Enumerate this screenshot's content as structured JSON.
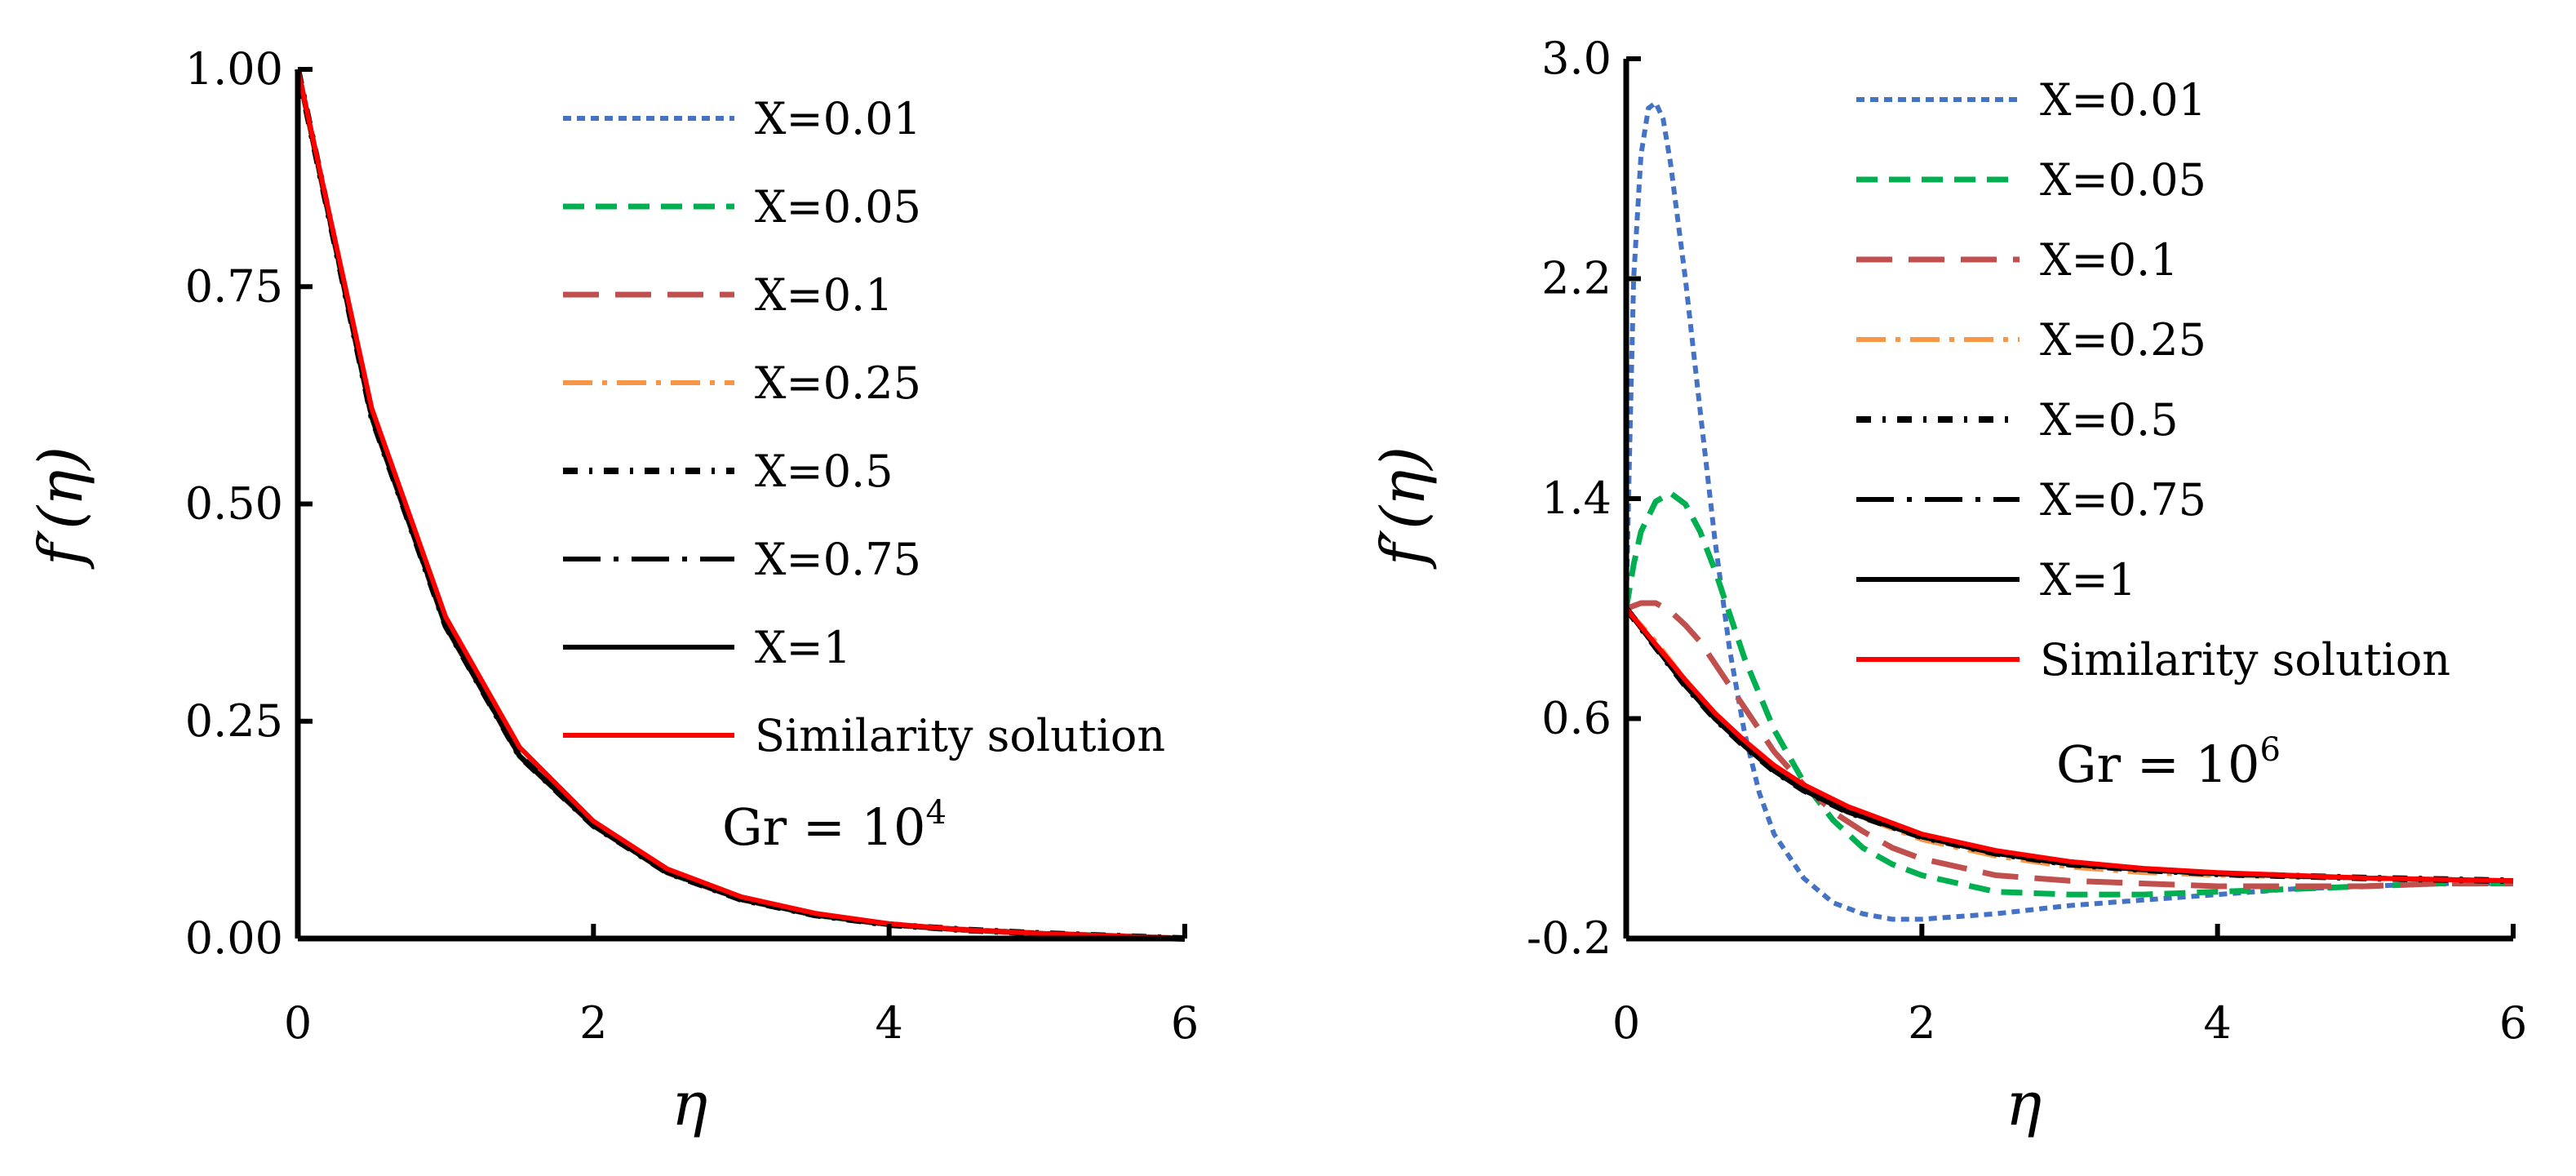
{
  "chart_data": [
    {
      "type": "line",
      "title": "",
      "xlabel": "η",
      "ylabel": "f′(η)",
      "xlim": [
        0,
        6
      ],
      "ylim": [
        0,
        1
      ],
      "xticks": [
        0,
        2,
        4,
        6
      ],
      "xtick_labels": [
        "0",
        "2",
        "4",
        "6"
      ],
      "yticks": [
        0,
        0.25,
        0.5,
        0.75,
        1.0
      ],
      "ytick_labels": [
        "0.00",
        "0.25",
        "0.50",
        "0.75",
        "1.00"
      ],
      "grid": false,
      "legend_position": "top-right",
      "annotation": {
        "base": "Gr = 10",
        "exp": "4"
      },
      "series": [
        {
          "name": "X=0.01",
          "color": "#4472c4",
          "style": "short-dash",
          "x": [
            0,
            0.5,
            1,
            1.5,
            2,
            2.5,
            3,
            3.5,
            4,
            4.5,
            5,
            5.5,
            6
          ],
          "y": [
            1.0,
            0.6,
            0.36,
            0.21,
            0.13,
            0.076,
            0.045,
            0.027,
            0.016,
            0.01,
            0.006,
            0.003,
            0.0
          ]
        },
        {
          "name": "X=0.05",
          "color": "#00b050",
          "style": "dash",
          "x": [
            0,
            0.5,
            1,
            1.5,
            2,
            2.5,
            3,
            3.5,
            4,
            4.5,
            5,
            5.5,
            6
          ],
          "y": [
            1.0,
            0.6,
            0.36,
            0.21,
            0.13,
            0.076,
            0.045,
            0.027,
            0.016,
            0.01,
            0.006,
            0.003,
            0.0
          ]
        },
        {
          "name": "X=0.1",
          "color": "#c0504d",
          "style": "long-dash",
          "x": [
            0,
            0.5,
            1,
            1.5,
            2,
            2.5,
            3,
            3.5,
            4,
            4.5,
            5,
            5.5,
            6
          ],
          "y": [
            1.0,
            0.6,
            0.36,
            0.21,
            0.13,
            0.076,
            0.045,
            0.027,
            0.016,
            0.01,
            0.006,
            0.003,
            0.0
          ]
        },
        {
          "name": "X=0.25",
          "color": "#f79646",
          "style": "dash-dot",
          "x": [
            0,
            0.5,
            1,
            1.5,
            2,
            2.5,
            3,
            3.5,
            4,
            4.5,
            5,
            5.5,
            6
          ],
          "y": [
            1.0,
            0.6,
            0.36,
            0.21,
            0.13,
            0.076,
            0.045,
            0.027,
            0.016,
            0.01,
            0.006,
            0.003,
            0.0
          ]
        },
        {
          "name": "X=0.5",
          "color": "#000000",
          "style": "round-dash-dot",
          "x": [
            0,
            0.5,
            1,
            1.5,
            2,
            2.5,
            3,
            3.5,
            4,
            4.5,
            5,
            5.5,
            6
          ],
          "y": [
            1.0,
            0.6,
            0.36,
            0.21,
            0.13,
            0.076,
            0.045,
            0.027,
            0.016,
            0.01,
            0.006,
            0.003,
            0.0
          ]
        },
        {
          "name": "X=0.75",
          "color": "#000000",
          "style": "long-dash-dot",
          "x": [
            0,
            0.5,
            1,
            1.5,
            2,
            2.5,
            3,
            3.5,
            4,
            4.5,
            5,
            5.5,
            6
          ],
          "y": [
            1.0,
            0.6,
            0.36,
            0.21,
            0.13,
            0.076,
            0.045,
            0.027,
            0.016,
            0.01,
            0.006,
            0.003,
            0.0
          ]
        },
        {
          "name": "X=1",
          "color": "#000000",
          "style": "solid",
          "x": [
            0,
            0.5,
            1,
            1.5,
            2,
            2.5,
            3,
            3.5,
            4,
            4.5,
            5,
            5.5,
            6
          ],
          "y": [
            1.0,
            0.6,
            0.36,
            0.21,
            0.13,
            0.076,
            0.045,
            0.027,
            0.016,
            0.01,
            0.006,
            0.003,
            0.0
          ]
        },
        {
          "name": "Similarity solution",
          "color": "#ff0000",
          "style": "solid",
          "x": [
            0,
            0.5,
            1,
            1.5,
            2,
            2.5,
            3,
            3.5,
            4,
            4.5,
            5,
            5.5,
            6
          ],
          "y": [
            1.0,
            0.61,
            0.37,
            0.22,
            0.135,
            0.08,
            0.048,
            0.029,
            0.017,
            0.01,
            0.006,
            0.003,
            0.0
          ]
        }
      ]
    },
    {
      "type": "line",
      "title": "",
      "xlabel": "η",
      "ylabel": "f′(η)",
      "xlim": [
        0,
        6
      ],
      "ylim": [
        -0.2,
        3.0
      ],
      "xticks": [
        0,
        2,
        4,
        6
      ],
      "xtick_labels": [
        "0",
        "2",
        "4",
        "6"
      ],
      "yticks": [
        -0.2,
        0.6,
        1.4,
        2.2,
        3.0
      ],
      "ytick_labels": [
        "-0.2",
        "0.6",
        "1.4",
        "2.2",
        "3.0"
      ],
      "grid": false,
      "legend_position": "top-right",
      "annotation": {
        "base": "Gr = 10",
        "exp": "6"
      },
      "series": [
        {
          "name": "X=0.01",
          "color": "#4472c4",
          "style": "short-dash",
          "x": [
            0,
            0.02,
            0.05,
            0.1,
            0.15,
            0.2,
            0.25,
            0.3,
            0.4,
            0.5,
            0.6,
            0.7,
            0.8,
            0.9,
            1.0,
            1.2,
            1.4,
            1.6,
            1.8,
            2.0,
            2.5,
            3.0,
            3.5,
            4.0,
            4.5,
            5.0,
            5.5,
            6.0
          ],
          "y": [
            1.0,
            1.5,
            2.2,
            2.65,
            2.82,
            2.84,
            2.78,
            2.62,
            2.2,
            1.72,
            1.25,
            0.85,
            0.55,
            0.33,
            0.18,
            0.02,
            -0.07,
            -0.11,
            -0.13,
            -0.13,
            -0.11,
            -0.08,
            -0.06,
            -0.04,
            -0.02,
            -0.01,
            0.0,
            0.0
          ]
        },
        {
          "name": "X=0.05",
          "color": "#00b050",
          "style": "dash",
          "x": [
            0,
            0.05,
            0.1,
            0.2,
            0.3,
            0.4,
            0.5,
            0.6,
            0.7,
            0.8,
            1.0,
            1.2,
            1.4,
            1.6,
            1.8,
            2.0,
            2.5,
            3.0,
            3.5,
            4.0,
            4.5,
            5.0,
            5.5,
            6.0
          ],
          "y": [
            1.0,
            1.16,
            1.28,
            1.39,
            1.42,
            1.38,
            1.28,
            1.14,
            0.98,
            0.82,
            0.56,
            0.37,
            0.23,
            0.13,
            0.07,
            0.03,
            -0.03,
            -0.04,
            -0.04,
            -0.03,
            -0.02,
            -0.01,
            0.0,
            0.0
          ]
        },
        {
          "name": "X=0.1",
          "color": "#c0504d",
          "style": "long-dash",
          "x": [
            0,
            0.1,
            0.2,
            0.3,
            0.4,
            0.5,
            0.6,
            0.8,
            1.0,
            1.2,
            1.4,
            1.6,
            1.8,
            2.0,
            2.5,
            3.0,
            3.5,
            4.0,
            4.5,
            5.0,
            5.5,
            6.0
          ],
          "y": [
            1.0,
            1.02,
            1.02,
            0.99,
            0.94,
            0.88,
            0.8,
            0.64,
            0.48,
            0.36,
            0.26,
            0.19,
            0.13,
            0.09,
            0.03,
            0.01,
            0.0,
            -0.01,
            -0.01,
            -0.01,
            0.0,
            0.0
          ]
        },
        {
          "name": "X=0.25",
          "color": "#f79646",
          "style": "dash-dot",
          "x": [
            0,
            0.2,
            0.4,
            0.6,
            0.8,
            1.0,
            1.2,
            1.5,
            2.0,
            2.5,
            3.0,
            3.5,
            4.0,
            5.0,
            6.0
          ],
          "y": [
            1.0,
            0.88,
            0.74,
            0.61,
            0.5,
            0.41,
            0.34,
            0.26,
            0.16,
            0.1,
            0.06,
            0.04,
            0.03,
            0.02,
            0.01
          ]
        },
        {
          "name": "X=0.5",
          "color": "#000000",
          "style": "round-dash-dot",
          "x": [
            0,
            0.2,
            0.4,
            0.6,
            0.8,
            1.0,
            1.2,
            1.5,
            2.0,
            2.5,
            3.0,
            3.5,
            4.0,
            5.0,
            6.0
          ],
          "y": [
            1.0,
            0.86,
            0.72,
            0.6,
            0.5,
            0.41,
            0.34,
            0.26,
            0.17,
            0.11,
            0.07,
            0.05,
            0.035,
            0.02,
            0.01
          ]
        },
        {
          "name": "X=0.75",
          "color": "#000000",
          "style": "long-dash-dot",
          "x": [
            0,
            0.2,
            0.4,
            0.6,
            0.8,
            1.0,
            1.2,
            1.5,
            2.0,
            2.5,
            3.0,
            3.5,
            4.0,
            5.0,
            6.0
          ],
          "y": [
            1.0,
            0.86,
            0.72,
            0.6,
            0.5,
            0.41,
            0.34,
            0.26,
            0.17,
            0.11,
            0.07,
            0.05,
            0.035,
            0.02,
            0.01
          ]
        },
        {
          "name": "X=1",
          "color": "#000000",
          "style": "solid",
          "x": [
            0,
            0.2,
            0.4,
            0.6,
            0.8,
            1.0,
            1.2,
            1.5,
            2.0,
            2.5,
            3.0,
            3.5,
            4.0,
            5.0,
            6.0
          ],
          "y": [
            1.0,
            0.86,
            0.72,
            0.6,
            0.5,
            0.41,
            0.34,
            0.26,
            0.17,
            0.11,
            0.07,
            0.05,
            0.035,
            0.02,
            0.01
          ]
        },
        {
          "name": "Similarity solution",
          "color": "#ff0000",
          "style": "solid",
          "x": [
            0,
            0.2,
            0.4,
            0.6,
            0.8,
            1.0,
            1.2,
            1.5,
            2.0,
            2.5,
            3.0,
            3.5,
            4.0,
            5.0,
            6.0
          ],
          "y": [
            1.0,
            0.87,
            0.74,
            0.62,
            0.52,
            0.43,
            0.36,
            0.28,
            0.18,
            0.12,
            0.08,
            0.055,
            0.04,
            0.02,
            0.01
          ]
        }
      ]
    }
  ]
}
